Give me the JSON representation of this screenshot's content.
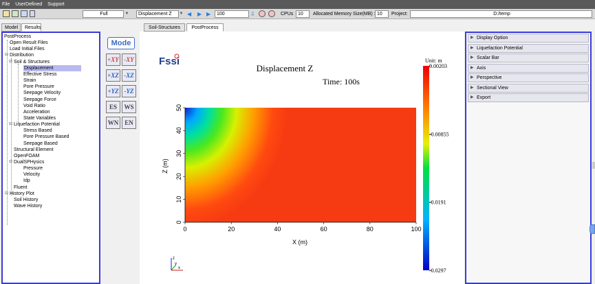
{
  "menu": [
    "File",
    "UserDefined",
    "Support"
  ],
  "toolbar": {
    "view_mode": "Full",
    "result_type": "Displacement Z",
    "frame": "100",
    "cpus_label": "CPUs",
    "cpus_value": "10",
    "memory_label": "Allocated Memory Size(MB) :",
    "memory_value": "10",
    "project_label": "Project:",
    "project_value": "D:/temp",
    "icons": [
      "open-folder-icon",
      "open-results-icon",
      "save-icon",
      "split-view-icon",
      "prev-frame-icon",
      "play-icon",
      "next-frame-icon",
      "download-icon",
      "parallel-icon",
      "network-icon"
    ]
  },
  "left_tabs": [
    "Model",
    "Results"
  ],
  "main_tabs": [
    "Soil-Structures",
    "PostProcess"
  ],
  "tree": [
    {
      "label": "PostProcess",
      "level": 0
    },
    {
      "label": "Open Result Files",
      "level": 1
    },
    {
      "label": "Load Initial Files",
      "level": 1
    },
    {
      "label": "Distribution",
      "level": 1,
      "expander": "⊟"
    },
    {
      "label": "Soil & Structures",
      "level": 2,
      "expander": "⊟"
    },
    {
      "label": "Displacement",
      "level": 3,
      "selected": true
    },
    {
      "label": "Effective Stress",
      "level": 3
    },
    {
      "label": "Strain",
      "level": 3
    },
    {
      "label": "Pore Pressure",
      "level": 3
    },
    {
      "label": "Seepage Velocity",
      "level": 3
    },
    {
      "label": "Seepage Force",
      "level": 3
    },
    {
      "label": "Void Ratio",
      "level": 3
    },
    {
      "label": "Acceleration",
      "level": 3
    },
    {
      "label": "State Variables",
      "level": 3
    },
    {
      "label": "Liquefaction Potential",
      "level": 2,
      "expander": "⊟"
    },
    {
      "label": "Stress Based",
      "level": 3
    },
    {
      "label": "Pore Pressure Based",
      "level": 3
    },
    {
      "label": "Seepage Based",
      "level": 3
    },
    {
      "label": "Structural Element",
      "level": 2
    },
    {
      "label": "OpenFOAM",
      "level": 2
    },
    {
      "label": "DualSPHysics",
      "level": 2,
      "expander": "⊟"
    },
    {
      "label": "Pressure",
      "level": 3
    },
    {
      "label": "Velocity",
      "level": 3
    },
    {
      "label": "Idp",
      "level": 3
    },
    {
      "label": "Fluent",
      "level": 2
    },
    {
      "label": "History Plot",
      "level": 1,
      "expander": "⊟"
    },
    {
      "label": "Soil History",
      "level": 2
    },
    {
      "label": "Wave History",
      "level": 2
    }
  ],
  "view_tools": {
    "mode_label": "Mode",
    "buttons": [
      {
        "name": "plus-xy-view-button",
        "label": "+XY"
      },
      {
        "name": "minus-xy-view-button",
        "label": "-XY"
      },
      {
        "name": "plus-xz-view-button",
        "label": "+XZ"
      },
      {
        "name": "minus-xz-view-button",
        "label": "-XZ"
      },
      {
        "name": "plus-yz-view-button",
        "label": "+YZ"
      },
      {
        "name": "minus-yz-view-button",
        "label": "-YZ"
      },
      {
        "name": "es-view-button",
        "label": "ES"
      },
      {
        "name": "ws-view-button",
        "label": "WS"
      },
      {
        "name": "wn-view-button",
        "label": "WN"
      },
      {
        "name": "en-view-button",
        "label": "EN"
      }
    ]
  },
  "plot": {
    "logo": "Fssi",
    "title": "Displacement Z",
    "time_text": "Time: 100s",
    "unit_text": "Unit:   m",
    "xlabel": "X (m)",
    "ylabel": "Z (m)",
    "xticks": [
      "0",
      "20",
      "40",
      "60",
      "80",
      "100"
    ],
    "yticks": [
      "0",
      "10",
      "20",
      "30",
      "40",
      "50"
    ],
    "colorbar_labels": [
      "0.00203",
      "-0.00855",
      "-0.0191",
      "-0.0297"
    ],
    "triad": {
      "z": "z",
      "x": "x",
      "y": "y"
    }
  },
  "chart_data": {
    "type": "heatmap",
    "title": "Displacement Z",
    "subtitle": "Time: 100s",
    "xlabel": "X (m)",
    "ylabel": "Z (m)",
    "xlim": [
      0,
      100
    ],
    "ylim": [
      0,
      50
    ],
    "colorbar": {
      "min": -0.0297,
      "max": 0.00203,
      "ticks": [
        0.00203,
        -0.00855,
        -0.0191,
        -0.0297
      ],
      "unit": "m"
    }
  },
  "right_panel": [
    "Display Option",
    "Liquefaction Potential",
    "Scalar Bar",
    "Axis",
    "Perspective",
    "Sectional View",
    "Export"
  ],
  "colors": {
    "panel_border": "#3a3adb",
    "title_bar": "#595959",
    "selection": "#b9b9ef"
  }
}
